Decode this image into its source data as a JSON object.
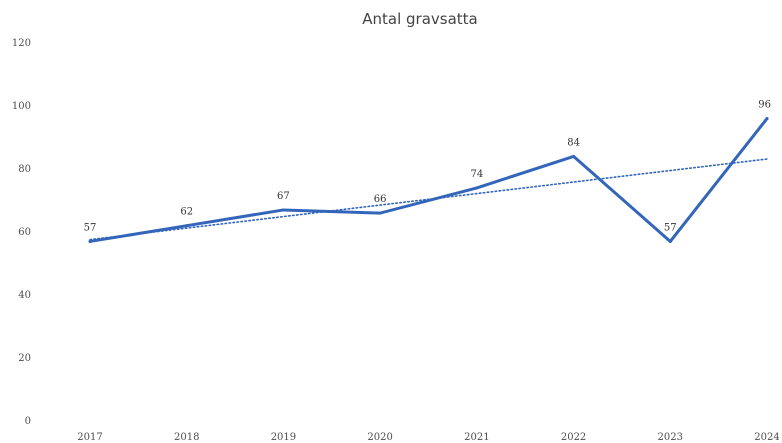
{
  "chart_data": {
    "type": "line",
    "title": "Antal gravsatta",
    "xlabel": "",
    "ylabel": "",
    "categories": [
      "2017",
      "2018",
      "2019",
      "2020",
      "2021",
      "2022",
      "2023",
      "2024"
    ],
    "series": [
      {
        "values": [
          57,
          62,
          67,
          66,
          74,
          84,
          57,
          96
        ],
        "color": "#3366bb",
        "data_labels": true
      }
    ],
    "trendline": {
      "kind": "linear",
      "style": "dotted",
      "color": "#3366bb"
    },
    "ylim": [
      0,
      120
    ],
    "yticks": [
      0,
      20,
      40,
      60,
      80,
      100,
      120
    ],
    "grid": false,
    "legend": "none"
  }
}
